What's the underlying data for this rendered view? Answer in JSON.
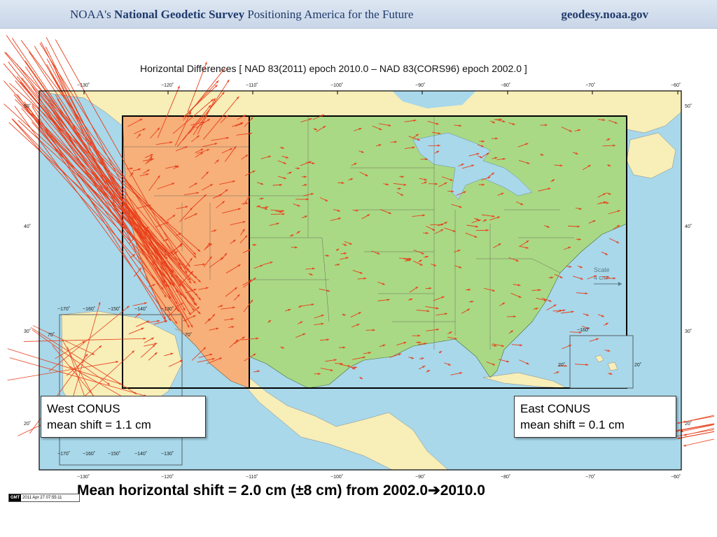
{
  "header": {
    "prefix": "NOAA's",
    "agency": "National Geodetic Survey",
    "tagline": "Positioning America for the Future",
    "site": "geodesy.noaa.gov"
  },
  "map": {
    "title": "Horizontal Differences [ NAD 83(2011) epoch 2010.0 – NAD 83(CORS96) epoch 2002.0 ]",
    "lon_ticks": [
      "−130˚",
      "−120˚",
      "−110˚",
      "−100˚",
      "−90˚",
      "−80˚",
      "−70˚",
      "−60˚"
    ],
    "lat_ticks": [
      "50˚",
      "40˚",
      "30˚",
      "20˚"
    ],
    "scale_label": "Scale",
    "scale_value": "4 cm",
    "alaska_lon_ticks": [
      "−170˚",
      "−160˚",
      "−150˚",
      "−140˚",
      "−130˚"
    ],
    "alaska_lat_label": "70˚",
    "hawaii_lon_label": "−160˚",
    "hawaii_lat_label": "20˚",
    "timestamp": "2011 Apr 27 07:55:11",
    "gmt_logo": "GMT",
    "colors": {
      "ocean": "#a8d8ea",
      "land": "#f7eeb8",
      "west": "#f7b07a",
      "east": "#a9d985",
      "arrow": "#e8401c"
    }
  },
  "west": {
    "title": "West CONUS",
    "mean": "mean shift = 1.1 cm"
  },
  "east": {
    "title": "East CONUS",
    "mean": "mean shift = 0.1 cm"
  },
  "summary": {
    "text": "Mean horizontal shift = 2.0 cm (±8 cm) from 2002.0",
    "arrow": "➔",
    "end": "2010.0"
  }
}
